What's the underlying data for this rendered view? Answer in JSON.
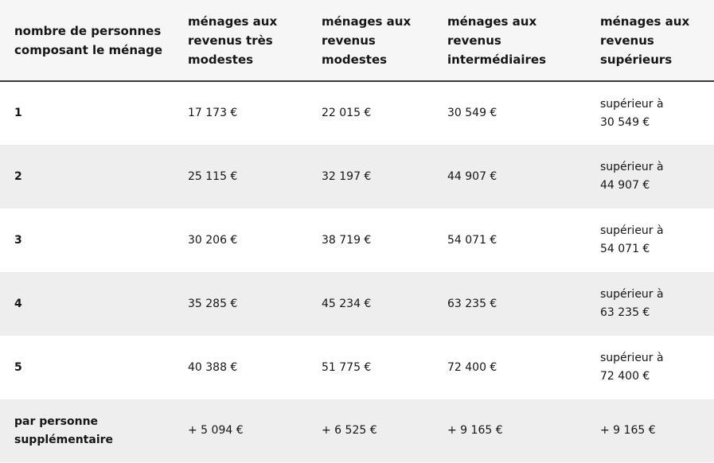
{
  "table": {
    "headers": [
      "nombre de personnes composant le ménage",
      "ménages aux revenus très modestes",
      "ménages aux revenus modestes",
      "ménages aux revenus intermédiaires",
      "ménages aux revenus supérieurs"
    ],
    "rows": [
      {
        "persons": "1",
        "tres_modestes": "17 173 €",
        "modestes": "22 015 €",
        "intermediaires": "30 549 €",
        "superieurs_prefix": "supérieur à",
        "superieurs_value": "30 549 €"
      },
      {
        "persons": "2",
        "tres_modestes": "25 115 €",
        "modestes": "32 197 €",
        "intermediaires": "44 907 €",
        "superieurs_prefix": "supérieur à",
        "superieurs_value": "44 907 €"
      },
      {
        "persons": "3",
        "tres_modestes": "30 206 €",
        "modestes": "38 719 €",
        "intermediaires": "54 071 €",
        "superieurs_prefix": "supérieur à",
        "superieurs_value": "54 071 €"
      },
      {
        "persons": "4",
        "tres_modestes": "35 285 €",
        "modestes": "45 234 €",
        "intermediaires": "63 235 €",
        "superieurs_prefix": "supérieur à",
        "superieurs_value": "63 235 €"
      },
      {
        "persons": "5",
        "tres_modestes": "40 388 €",
        "modestes": "51 775 €",
        "intermediaires": "72 400 €",
        "superieurs_prefix": "supérieur à",
        "superieurs_value": "72 400 €"
      }
    ],
    "extra_row": {
      "label": "par personne supplémentaire",
      "tres_modestes": "+ 5 094 €",
      "modestes": "+ 6 525 €",
      "intermediaires": "+ 9 165 €",
      "superieurs": "+ 9 165 €"
    }
  }
}
